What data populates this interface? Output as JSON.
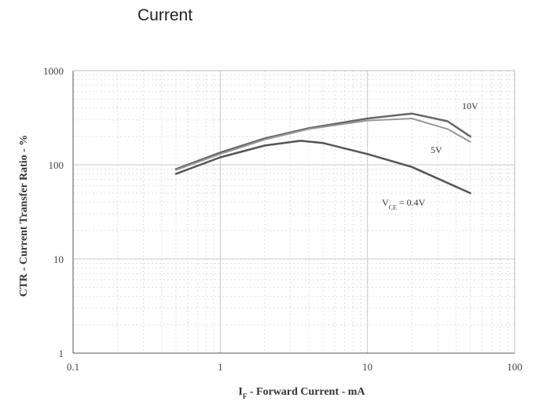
{
  "page_title": "Current",
  "chart_data": {
    "type": "line",
    "xlabel_main": "I",
    "xlabel_sub": "F",
    "xlabel_rest": " - Forward Current - mA",
    "ylabel": "CTR - Current Transfer Ratio - %",
    "x_scale": "log",
    "y_scale": "log",
    "xlim": [
      0.1,
      100
    ],
    "ylim": [
      1,
      1000
    ],
    "x_ticks": [
      0.1,
      1,
      10,
      100
    ],
    "x_tick_labels": [
      "0.1",
      "1",
      "10",
      "100"
    ],
    "y_ticks": [
      1,
      10,
      100,
      1000
    ],
    "y_tick_labels": [
      "1",
      "10",
      "100",
      "1000"
    ],
    "grid": true,
    "series": [
      {
        "name": "10V",
        "label_main": "10V",
        "label_sub": "",
        "label_rest": "",
        "color": "#666666",
        "x": [
          0.5,
          1,
          2,
          4,
          10,
          20,
          35,
          50
        ],
        "y": [
          90,
          135,
          190,
          245,
          310,
          350,
          290,
          200
        ]
      },
      {
        "name": "5V",
        "label_main": "5V",
        "label_sub": "",
        "label_rest": "",
        "color": "#999999",
        "x": [
          0.5,
          1,
          2,
          4,
          10,
          20,
          35,
          50
        ],
        "y": [
          88,
          130,
          185,
          240,
          295,
          310,
          240,
          175
        ]
      },
      {
        "name": "VCE = 0.4V",
        "label_main": "V",
        "label_sub": "CE",
        "label_rest": " = 0.4V",
        "color": "#555555",
        "x": [
          0.5,
          1,
          2,
          3.5,
          5,
          10,
          20,
          50
        ],
        "y": [
          80,
          120,
          160,
          180,
          170,
          130,
          95,
          50
        ]
      }
    ]
  }
}
